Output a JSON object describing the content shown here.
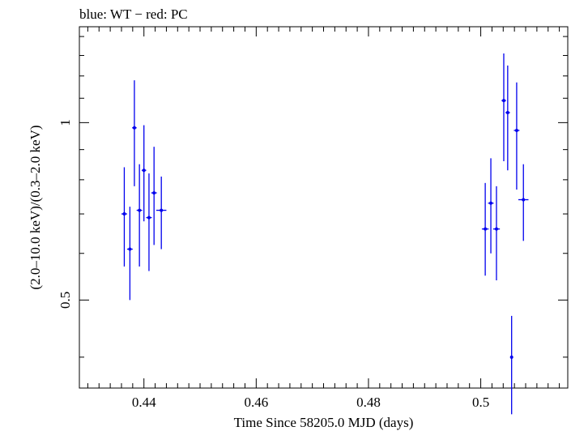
{
  "chart_data": {
    "type": "scatter",
    "title": "blue: WT − red: PC",
    "xlabel": "Time Since 58205.0 MJD (days)",
    "ylabel": "(2.0–10.0 keV)/(0.3–2.0 keV)",
    "xlim": [
      0.4285,
      0.5155
    ],
    "ylim": [
      0.3545,
      1.4545
    ],
    "yscale": "log",
    "x_ticks": [
      "0.44",
      "0.46",
      "0.48",
      "0.5"
    ],
    "y_ticks": [
      "0.5",
      "1"
    ],
    "grid": false,
    "legend": "none",
    "series": [
      {
        "color": "#0000ee",
        "points": [
          {
            "x": 0.4365,
            "y": 0.7,
            "xerr": 0.0005,
            "ylo": 0.57,
            "yhi": 0.84
          },
          {
            "x": 0.4375,
            "y": 0.61,
            "xerr": 0.0005,
            "ylo": 0.5,
            "yhi": 0.72
          },
          {
            "x": 0.4383,
            "y": 0.98,
            "xerr": 0.0004,
            "ylo": 0.78,
            "yhi": 1.18
          },
          {
            "x": 0.4392,
            "y": 0.71,
            "xerr": 0.0005,
            "ylo": 0.57,
            "yhi": 0.85
          },
          {
            "x": 0.44,
            "y": 0.83,
            "xerr": 0.0004,
            "ylo": 0.68,
            "yhi": 0.99
          },
          {
            "x": 0.4409,
            "y": 0.69,
            "xerr": 0.0005,
            "ylo": 0.56,
            "yhi": 0.82
          },
          {
            "x": 0.4418,
            "y": 0.76,
            "xerr": 0.0005,
            "ylo": 0.62,
            "yhi": 0.91
          },
          {
            "x": 0.4431,
            "y": 0.71,
            "xerr": 0.0009,
            "ylo": 0.61,
            "yhi": 0.81
          },
          {
            "x": 0.5008,
            "y": 0.66,
            "xerr": 0.0006,
            "ylo": 0.55,
            "yhi": 0.79
          },
          {
            "x": 0.5018,
            "y": 0.73,
            "xerr": 0.0005,
            "ylo": 0.6,
            "yhi": 0.87
          },
          {
            "x": 0.5028,
            "y": 0.66,
            "xerr": 0.0006,
            "ylo": 0.54,
            "yhi": 0.78
          },
          {
            "x": 0.5041,
            "y": 1.09,
            "xerr": 0.0004,
            "ylo": 0.86,
            "yhi": 1.31
          },
          {
            "x": 0.5048,
            "y": 1.04,
            "xerr": 0.0004,
            "ylo": 0.83,
            "yhi": 1.25
          },
          {
            "x": 0.5055,
            "y": 0.4,
            "xerr": 0.0002,
            "ylo": 0.32,
            "yhi": 0.47
          },
          {
            "x": 0.5064,
            "y": 0.97,
            "xerr": 0.0005,
            "ylo": 0.77,
            "yhi": 1.17
          },
          {
            "x": 0.5076,
            "y": 0.74,
            "xerr": 0.0009,
            "ylo": 0.63,
            "yhi": 0.85
          }
        ]
      }
    ]
  }
}
